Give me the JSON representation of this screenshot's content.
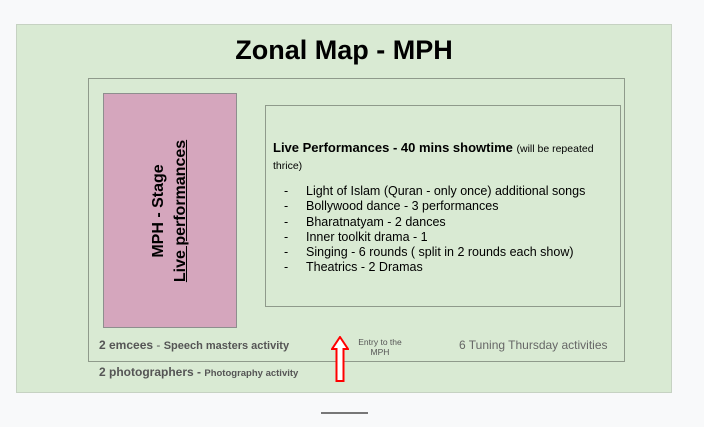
{
  "title": "Zonal Map - MPH",
  "stage": {
    "line1": "MPH - Stage",
    "line2": "Live performances"
  },
  "performances": {
    "heading": "Live Performances - 40 mins showtime",
    "note": "(will be repeated thrice)",
    "items": [
      "Light of Islam (Quran - only once) additional songs",
      "Bollywood dance - 3 performances",
      "Bharatnatyam - 2 dances",
      "Inner toolkit drama - 1",
      "Singing - 6 rounds ( split in 2 rounds each show)",
      "Theatrics - 2 Dramas"
    ]
  },
  "emcees": {
    "count": "2 emcees",
    "sep": " - ",
    "activity": "Speech masters activity"
  },
  "entry": {
    "line1": "Entry to the",
    "line2": "MPH"
  },
  "tuning": "6 Tuning Thursday activities",
  "photographers": {
    "count": "2 photographers",
    "sep": " - ",
    "activity": "Photography activity"
  },
  "colors": {
    "background": "#d9ead3",
    "stage": "#d5a6bd",
    "arrow": "#ff0000"
  },
  "icons": {
    "entry_arrow": "arrow-up-outline-icon"
  }
}
